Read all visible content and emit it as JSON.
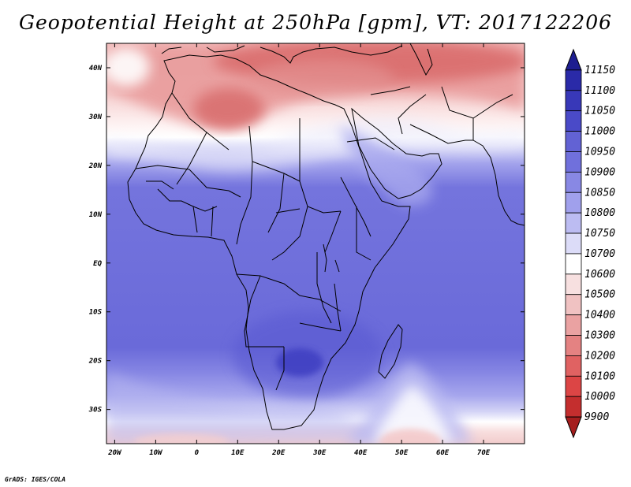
{
  "title": "Geopotential Height at 250hPa [gpm], VT: 2017122206",
  "credit": "GrADS: IGES/COLA",
  "chart_data": {
    "type": "heatmap",
    "title": "Geopotential Height at 250hPa [gpm], VT: 2017122206",
    "variable": "Geopotential Height",
    "level": "250hPa",
    "units": "gpm",
    "valid_time": "2017122206",
    "lon_range": [
      -22,
      80
    ],
    "lat_range": [
      -37,
      45
    ],
    "x_ticks": [
      {
        "value": -20,
        "label": "20W"
      },
      {
        "value": -10,
        "label": "10W"
      },
      {
        "value": 0,
        "label": "0"
      },
      {
        "value": 10,
        "label": "10E"
      },
      {
        "value": 20,
        "label": "20E"
      },
      {
        "value": 30,
        "label": "30E"
      },
      {
        "value": 40,
        "label": "40E"
      },
      {
        "value": 50,
        "label": "50E"
      },
      {
        "value": 60,
        "label": "60E"
      },
      {
        "value": 70,
        "label": "70E"
      }
    ],
    "y_ticks": [
      {
        "value": 40,
        "label": "40N"
      },
      {
        "value": 30,
        "label": "30N"
      },
      {
        "value": 20,
        "label": "20N"
      },
      {
        "value": 10,
        "label": "10N"
      },
      {
        "value": 0,
        "label": "EQ"
      },
      {
        "value": -10,
        "label": "10S"
      },
      {
        "value": -20,
        "label": "20S"
      },
      {
        "value": -30,
        "label": "30S"
      }
    ],
    "colorbar": {
      "levels": [
        9900,
        10000,
        10100,
        10200,
        10300,
        10400,
        10500,
        10600,
        10700,
        10750,
        10800,
        10850,
        10900,
        10950,
        11000,
        11050,
        11100,
        11150
      ],
      "colors": [
        "#a51e1e",
        "#c42e2e",
        "#dc4545",
        "#e06262",
        "#e48282",
        "#eaa2a2",
        "#f0c2c2",
        "#f7e0e0",
        "#ffffff",
        "#dcdcf8",
        "#bcbcf2",
        "#a0a0ec",
        "#8888e4",
        "#7070dc",
        "#6262d4",
        "#4a4ac8",
        "#3838b8",
        "#2a2aa8",
        "#1e1e90"
      ]
    }
  }
}
